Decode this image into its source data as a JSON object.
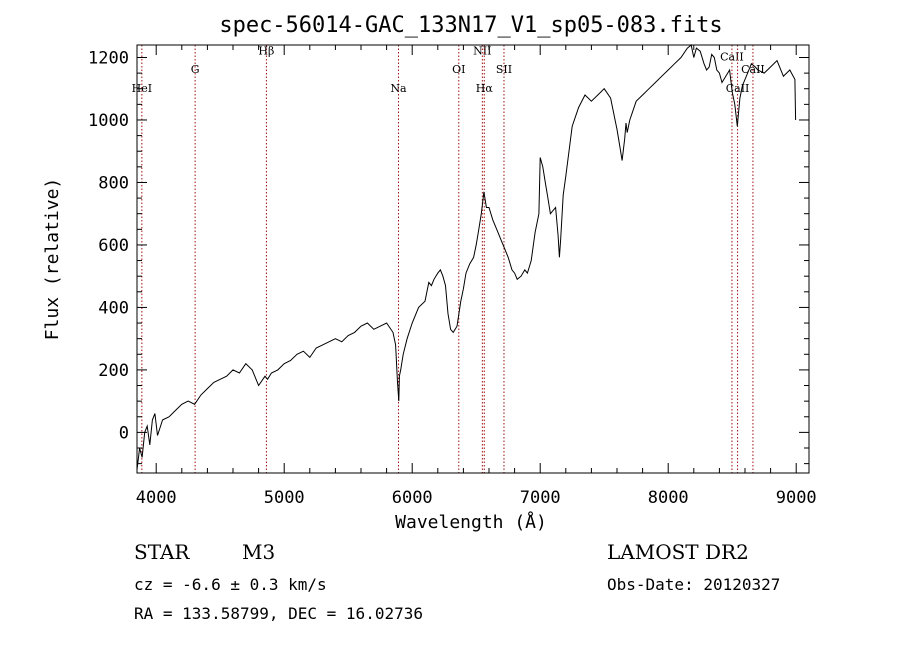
{
  "colors": {
    "axis": "#000000",
    "spectrum": "#000000",
    "line_markers": "#a01010"
  },
  "chart_data": {
    "type": "line",
    "title": "spec-56014-GAC_133N17_V1_sp05-083.fits",
    "xlabel": "Wavelength (Å)",
    "ylabel": "Flux (relative)",
    "xlim": [
      3850,
      9100
    ],
    "ylim": [
      -130,
      1240
    ],
    "xticks": [
      4000,
      5000,
      6000,
      7000,
      8000,
      9000
    ],
    "yticks": [
      0,
      200,
      400,
      600,
      800,
      1000,
      1200
    ],
    "grid": false,
    "series": [
      {
        "x": [
          3850,
          3870,
          3890,
          3910,
          3930,
          3950,
          3970,
          3990,
          4010,
          4050,
          4100,
          4150,
          4200,
          4250,
          4300,
          4350,
          4400,
          4450,
          4500,
          4550,
          4600,
          4650,
          4700,
          4750,
          4800,
          4850,
          4870,
          4900,
          4950,
          5000,
          5050,
          5100,
          5150,
          5200,
          5250,
          5300,
          5350,
          5400,
          5450,
          5500,
          5550,
          5600,
          5650,
          5700,
          5750,
          5800,
          5850,
          5870,
          5885,
          5895,
          5900,
          5910,
          5930,
          5960,
          6000,
          6050,
          6100,
          6130,
          6150,
          6170,
          6200,
          6220,
          6240,
          6260,
          6280,
          6300,
          6320,
          6350,
          6380,
          6400,
          6420,
          6450,
          6480,
          6500,
          6520,
          6540,
          6560,
          6580,
          6600,
          6630,
          6660,
          6700,
          6720,
          6750,
          6780,
          6800,
          6820,
          6850,
          6880,
          6900,
          6930,
          6960,
          6990,
          7000,
          7020,
          7040,
          7060,
          7080,
          7100,
          7120,
          7140,
          7150,
          7160,
          7180,
          7200,
          7250,
          7300,
          7350,
          7400,
          7450,
          7500,
          7550,
          7600,
          7620,
          7640,
          7660,
          7670,
          7680,
          7700,
          7750,
          7800,
          7850,
          7900,
          7950,
          8000,
          8050,
          8100,
          8150,
          8180,
          8200,
          8220,
          8250,
          8280,
          8300,
          8320,
          8340,
          8360,
          8380,
          8400,
          8420,
          8450,
          8480,
          8500,
          8520,
          8540,
          8560,
          8580,
          8600,
          8620,
          8650,
          8680,
          8700,
          8750,
          8800,
          8850,
          8900,
          8950,
          8990,
          8995
        ],
        "y": [
          -120,
          -50,
          -80,
          0,
          20,
          -40,
          40,
          60,
          -10,
          40,
          50,
          70,
          90,
          100,
          90,
          120,
          140,
          160,
          170,
          180,
          200,
          190,
          220,
          200,
          150,
          180,
          170,
          190,
          200,
          220,
          230,
          250,
          260,
          240,
          270,
          280,
          290,
          300,
          290,
          310,
          320,
          340,
          350,
          330,
          340,
          350,
          320,
          280,
          160,
          100,
          180,
          200,
          250,
          300,
          350,
          400,
          420,
          480,
          470,
          490,
          510,
          520,
          500,
          470,
          380,
          330,
          320,
          340,
          420,
          460,
          510,
          540,
          560,
          600,
          650,
          700,
          770,
          720,
          720,
          680,
          650,
          610,
          590,
          560,
          520,
          510,
          490,
          500,
          520,
          510,
          550,
          640,
          700,
          880,
          850,
          800,
          750,
          700,
          710,
          720,
          630,
          560,
          620,
          760,
          820,
          980,
          1040,
          1080,
          1060,
          1080,
          1100,
          1070,
          970,
          920,
          870,
          940,
          990,
          960,
          1000,
          1060,
          1080,
          1100,
          1120,
          1140,
          1160,
          1180,
          1200,
          1230,
          1240,
          1200,
          1230,
          1220,
          1180,
          1160,
          1170,
          1210,
          1200,
          1160,
          1150,
          1120,
          1140,
          1160,
          1090,
          1050,
          980,
          1070,
          1110,
          1130,
          1150,
          1180,
          1170,
          1160,
          1150,
          1170,
          1190,
          1140,
          1160,
          1130,
          1000
        ]
      }
    ],
    "line_markers": [
      {
        "label": "HeI",
        "x": 3888,
        "label_y": 1090
      },
      {
        "label": "G",
        "x": 4304,
        "label_y": 1150
      },
      {
        "label": "Hβ",
        "x": 4861,
        "label_y": 1210
      },
      {
        "label": "Na",
        "x": 5893,
        "label_y": 1090
      },
      {
        "label": "OI",
        "x": 6364,
        "label_y": 1150
      },
      {
        "label": "NII",
        "x": 6548,
        "label_y": 1210
      },
      {
        "label": "Hα",
        "x": 6563,
        "label_y": 1090
      },
      {
        "label": "SII",
        "x": 6717,
        "label_y": 1150
      },
      {
        "label": "CaII",
        "x": 8498,
        "label_y": 1190
      },
      {
        "label": "CaII",
        "x": 8542,
        "label_y": 1090
      },
      {
        "label": "CaII",
        "x": 8662,
        "label_y": 1150
      }
    ]
  },
  "info": {
    "object_type": "STAR",
    "subclass": "M3",
    "survey": "LAMOST DR2",
    "cz": "cz = -6.6 ± 0.3 km/s",
    "obs_date": "Obs-Date: 20120327",
    "coords": "RA = 133.58799, DEC =  16.02736"
  }
}
